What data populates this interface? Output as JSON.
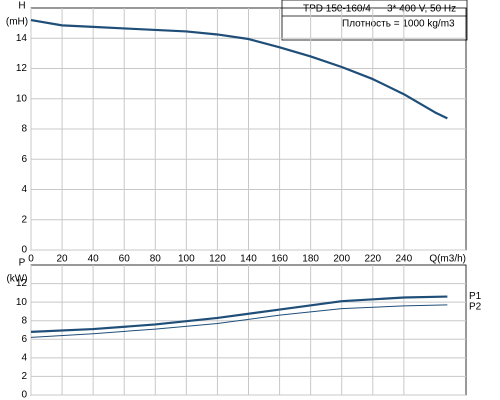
{
  "chart_data": [
    {
      "type": "line",
      "y_label": "H",
      "y_unit": "(mH)",
      "x_label": "Q(m3/h)",
      "annotations": [
        "TPD 150-160/4",
        "3* 400 V, 50 Hz",
        "Плотность = 1000 kg/m3"
      ],
      "x": [
        0,
        20,
        40,
        60,
        80,
        100,
        120,
        140,
        160,
        180,
        200,
        220,
        240,
        260,
        268
      ],
      "series": [
        {
          "name": "H",
          "color": "#1f4e79",
          "width": 2.2,
          "values": [
            15.2,
            14.85,
            14.75,
            14.65,
            14.55,
            14.45,
            14.25,
            13.95,
            13.4,
            12.8,
            12.1,
            11.3,
            10.3,
            9.1,
            8.7
          ]
        }
      ],
      "xlim": [
        0,
        280
      ],
      "xticks": [
        0,
        20,
        40,
        60,
        80,
        100,
        120,
        140,
        160,
        180,
        200,
        220,
        240
      ],
      "ylim": [
        0,
        16
      ],
      "yticks": [
        0,
        2,
        4,
        6,
        8,
        10,
        12,
        14
      ],
      "grid": true
    },
    {
      "type": "line",
      "y_label": "P",
      "y_unit": "(kW)",
      "x": [
        0,
        40,
        80,
        120,
        160,
        200,
        240,
        268
      ],
      "series": [
        {
          "name": "P1",
          "color": "#1f4e79",
          "width": 2.2,
          "values": [
            6.8,
            7.1,
            7.6,
            8.3,
            9.2,
            10.1,
            10.5,
            10.6
          ]
        },
        {
          "name": "P2",
          "color": "#1f4e79",
          "width": 1,
          "values": [
            6.2,
            6.6,
            7.1,
            7.7,
            8.6,
            9.3,
            9.6,
            9.7
          ]
        }
      ],
      "xlim": [
        0,
        280
      ],
      "ylim": [
        0,
        14
      ],
      "yticks": [
        0,
        2,
        4,
        6,
        8,
        10,
        12
      ],
      "grid": true
    }
  ]
}
